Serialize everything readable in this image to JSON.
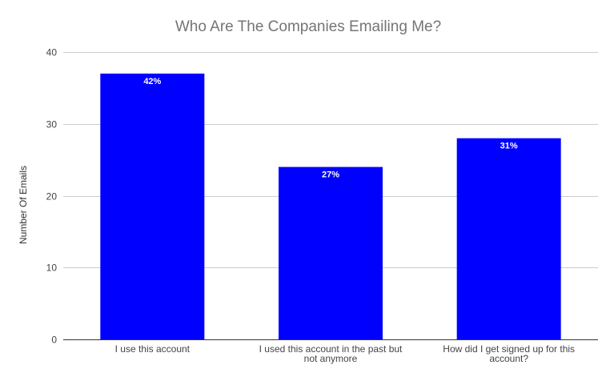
{
  "chart_data": {
    "type": "bar",
    "title": "Who Are The Companies Emailing Me?",
    "xlabel": "",
    "ylabel": "Number Of Emails",
    "ylim": [
      0,
      40
    ],
    "yticks": [
      0,
      10,
      20,
      30,
      40
    ],
    "grid": true,
    "legend": "none",
    "bar_color": "#0000ff",
    "categories": [
      [
        "I use this account"
      ],
      [
        "I used this account in the past but",
        "not anymore"
      ],
      [
        "How did I get signed up for this",
        "account?"
      ]
    ],
    "values": [
      37,
      24,
      28
    ],
    "data_labels": [
      "42%",
      "27%",
      "31%"
    ]
  }
}
